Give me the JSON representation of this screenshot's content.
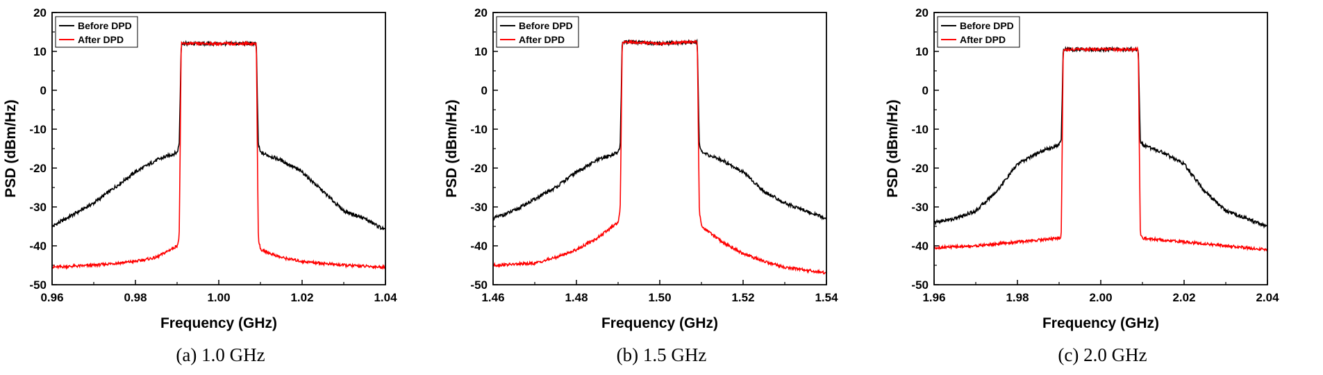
{
  "chart_data": [
    {
      "type": "line",
      "caption": "(a)  1.0  GHz",
      "xlabel": "Frequency (GHz)",
      "ylabel": "PSD (dBm/Hz)",
      "xlim": [
        0.96,
        1.04
      ],
      "ylim": [
        -50,
        20
      ],
      "xticks": [
        "0.96",
        "0.98",
        "1.00",
        "1.02",
        "1.04"
      ],
      "yticks": [
        "20",
        "10",
        "0",
        "-10",
        "-20",
        "-30",
        "-40",
        "-50"
      ],
      "legend_position": "top-left",
      "series": [
        {
          "name": "Before DPD",
          "color": "#000000",
          "x": [
            0.96,
            0.965,
            0.97,
            0.975,
            0.98,
            0.985,
            0.99,
            0.9905,
            0.991,
            1.0,
            1.009,
            1.0095,
            1.01,
            1.015,
            1.02,
            1.025,
            1.03,
            1.035,
            1.04
          ],
          "y": [
            -35,
            -32,
            -29,
            -25,
            -21,
            -18,
            -16,
            -14,
            12,
            12,
            12,
            -14,
            -16,
            -18,
            -21,
            -26,
            -31,
            -33,
            -36
          ]
        },
        {
          "name": "After DPD",
          "color": "#ff0000",
          "x": [
            0.96,
            0.97,
            0.98,
            0.985,
            0.99,
            0.9905,
            0.991,
            1.0,
            1.009,
            1.0095,
            1.01,
            1.015,
            1.02,
            1.03,
            1.04
          ],
          "y": [
            -45.5,
            -45,
            -44,
            -43,
            -40,
            -38,
            12,
            12,
            12,
            -38,
            -41,
            -43,
            -44,
            -45,
            -45.5
          ]
        }
      ]
    },
    {
      "type": "line",
      "caption": "(b)  1.5  GHz",
      "xlabel": "Frequency (GHz)",
      "ylabel": "PSD (dBm/Hz)",
      "xlim": [
        1.46,
        1.54
      ],
      "ylim": [
        -50,
        20
      ],
      "xticks": [
        "1.46",
        "1.48",
        "1.50",
        "1.52",
        "1.54"
      ],
      "yticks": [
        "20",
        "10",
        "0",
        "-10",
        "-20",
        "-30",
        "-40",
        "-50"
      ],
      "legend_position": "top-left",
      "series": [
        {
          "name": "Before DPD",
          "color": "#000000",
          "x": [
            1.46,
            1.465,
            1.47,
            1.475,
            1.48,
            1.485,
            1.49,
            1.4905,
            1.491,
            1.5,
            1.509,
            1.5095,
            1.51,
            1.515,
            1.52,
            1.525,
            1.53,
            1.535,
            1.54
          ],
          "y": [
            -33,
            -31,
            -28,
            -25,
            -21,
            -18,
            -16,
            -14,
            12.5,
            12,
            12.5,
            -14,
            -16,
            -18,
            -21,
            -26,
            -29,
            -31,
            -33
          ]
        },
        {
          "name": "After DPD",
          "color": "#ff0000",
          "x": [
            1.46,
            1.47,
            1.475,
            1.48,
            1.485,
            1.49,
            1.4905,
            1.491,
            1.5,
            1.509,
            1.5095,
            1.51,
            1.515,
            1.52,
            1.525,
            1.53,
            1.54
          ],
          "y": [
            -45,
            -44.5,
            -43,
            -41,
            -38,
            -34,
            -31,
            12.5,
            12,
            12.5,
            -31,
            -35,
            -39,
            -42,
            -44,
            -45.5,
            -47
          ]
        }
      ]
    },
    {
      "type": "line",
      "caption": "(c)  2.0  GHz",
      "xlabel": "Frequency (GHz)",
      "ylabel": "PSD (dBm/Hz)",
      "xlim": [
        1.96,
        2.04
      ],
      "ylim": [
        -50,
        20
      ],
      "xticks": [
        "1.96",
        "1.98",
        "2.00",
        "2.02",
        "2.04"
      ],
      "yticks": [
        "20",
        "10",
        "0",
        "-10",
        "-20",
        "-30",
        "-40",
        "-50"
      ],
      "legend_position": "top-left",
      "series": [
        {
          "name": "Before DPD",
          "color": "#000000",
          "x": [
            1.96,
            1.965,
            1.97,
            1.975,
            1.98,
            1.985,
            1.99,
            1.9905,
            1.991,
            2.0,
            2.009,
            2.0095,
            2.01,
            2.015,
            2.02,
            2.025,
            2.03,
            2.035,
            2.04
          ],
          "y": [
            -34,
            -33,
            -31,
            -26,
            -19,
            -16,
            -14,
            -13,
            10.5,
            10.5,
            10.5,
            -13,
            -14,
            -16,
            -19,
            -26,
            -31,
            -33,
            -35
          ]
        },
        {
          "name": "After DPD",
          "color": "#ff0000",
          "x": [
            1.96,
            1.97,
            1.98,
            1.99,
            1.9905,
            1.991,
            2.0,
            2.009,
            2.0095,
            2.01,
            2.02,
            2.03,
            2.04
          ],
          "y": [
            -40.5,
            -40,
            -39,
            -38,
            -38,
            10.5,
            10.5,
            10.5,
            -37,
            -38,
            -39,
            -40,
            -41
          ]
        }
      ]
    }
  ]
}
